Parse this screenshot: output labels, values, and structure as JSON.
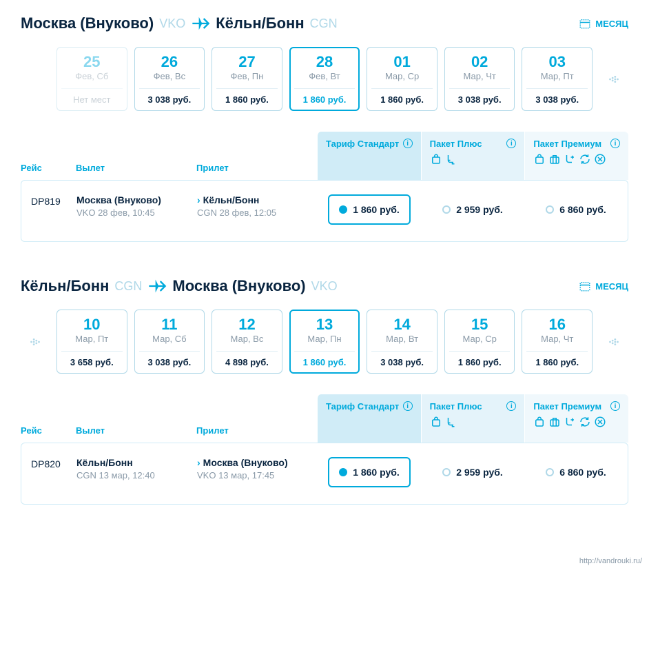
{
  "colors": {
    "accent": "#00aadc",
    "lightAccent": "#b0d8e8",
    "text": "#0a2540",
    "muted": "#8a9aa8"
  },
  "monthLabel": "МЕСЯЦ",
  "headers": {
    "flight": "Рейс",
    "departure": "Вылет",
    "arrival": "Прилет"
  },
  "tariffs": {
    "standard": "Тариф Стандарт",
    "plus": "Пакет Плюс",
    "premium": "Пакет Премиум"
  },
  "legs": [
    {
      "from": "Москва (Внуково)",
      "fromCode": "VKO",
      "to": "Кёльн/Бонн",
      "toCode": "CGN",
      "navPrev": false,
      "navNext": true,
      "dates": [
        {
          "day": "25",
          "dow": "Фев, Сб",
          "price": "Нет мест",
          "disabled": true,
          "selected": false
        },
        {
          "day": "26",
          "dow": "Фев, Вс",
          "price": "3 038 руб.",
          "disabled": false,
          "selected": false
        },
        {
          "day": "27",
          "dow": "Фев, Пн",
          "price": "1 860 руб.",
          "disabled": false,
          "selected": false
        },
        {
          "day": "28",
          "dow": "Фев, Вт",
          "price": "1 860 руб.",
          "disabled": false,
          "selected": true
        },
        {
          "day": "01",
          "dow": "Мар, Ср",
          "price": "1 860 руб.",
          "disabled": false,
          "selected": false
        },
        {
          "day": "02",
          "dow": "Мар, Чт",
          "price": "3 038 руб.",
          "disabled": false,
          "selected": false
        },
        {
          "day": "03",
          "dow": "Мар, Пт",
          "price": "3 038 руб.",
          "disabled": false,
          "selected": false
        }
      ],
      "flight": {
        "number": "DP819",
        "depCity": "Москва (Внуково)",
        "depDetails": "VKO 28 фев, 10:45",
        "arrCity": "Кёльн/Бонн",
        "arrDetails": "CGN 28 фев, 12:05",
        "prices": {
          "standard": "1 860 руб.",
          "plus": "2 959 руб.",
          "premium": "6 860 руб."
        },
        "selected": "standard"
      }
    },
    {
      "from": "Кёльн/Бонн",
      "fromCode": "CGN",
      "to": "Москва (Внуково)",
      "toCode": "VKO",
      "navPrev": true,
      "navNext": true,
      "dates": [
        {
          "day": "10",
          "dow": "Мар, Пт",
          "price": "3 658 руб.",
          "disabled": false,
          "selected": false
        },
        {
          "day": "11",
          "dow": "Мар, Сб",
          "price": "3 038 руб.",
          "disabled": false,
          "selected": false
        },
        {
          "day": "12",
          "dow": "Мар, Вс",
          "price": "4 898 руб.",
          "disabled": false,
          "selected": false
        },
        {
          "day": "13",
          "dow": "Мар, Пн",
          "price": "1 860 руб.",
          "disabled": false,
          "selected": true
        },
        {
          "day": "14",
          "dow": "Мар, Вт",
          "price": "3 038 руб.",
          "disabled": false,
          "selected": false
        },
        {
          "day": "15",
          "dow": "Мар, Ср",
          "price": "1 860 руб.",
          "disabled": false,
          "selected": false
        },
        {
          "day": "16",
          "dow": "Мар, Чт",
          "price": "1 860 руб.",
          "disabled": false,
          "selected": false
        }
      ],
      "flight": {
        "number": "DP820",
        "depCity": "Кёльн/Бонн",
        "depDetails": "CGN 13 мар, 12:40",
        "arrCity": "Москва (Внуково)",
        "arrDetails": "VKO 13 мар, 17:45",
        "prices": {
          "standard": "1 860 руб.",
          "plus": "2 959 руб.",
          "premium": "6 860 руб."
        },
        "selected": "standard"
      }
    }
  ],
  "footer": "http://vandrouki.ru/"
}
